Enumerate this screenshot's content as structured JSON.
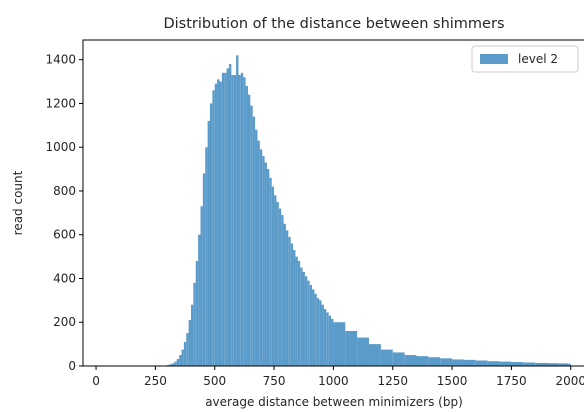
{
  "chart_data": {
    "type": "bar",
    "histogram": true,
    "title": "Distribution of the distance between shimmers",
    "xlabel": "average distance between minimizers (bp)",
    "ylabel": "read count",
    "xlim": [
      -55,
      2060
    ],
    "ylim": [
      0,
      1490
    ],
    "xticks": [
      0,
      250,
      500,
      750,
      1000,
      1250,
      1500,
      1750,
      2000
    ],
    "yticks": [
      0,
      200,
      400,
      600,
      800,
      1000,
      1200,
      1400
    ],
    "legend": {
      "placement": "top-right",
      "entries": [
        "level 2"
      ]
    },
    "grid": false,
    "series": [
      {
        "name": "level 2",
        "color": "#5a9bc9",
        "bin_width": 10,
        "x": [
          300,
          310,
          320,
          330,
          340,
          350,
          360,
          370,
          380,
          390,
          400,
          410,
          420,
          430,
          440,
          450,
          460,
          470,
          480,
          490,
          500,
          510,
          520,
          530,
          540,
          550,
          560,
          570,
          580,
          590,
          600,
          610,
          620,
          630,
          640,
          650,
          660,
          670,
          680,
          690,
          700,
          710,
          720,
          730,
          740,
          750,
          760,
          770,
          780,
          790,
          800,
          810,
          820,
          830,
          840,
          850,
          860,
          870,
          880,
          890,
          900,
          910,
          920,
          930,
          940,
          950,
          960,
          970,
          980,
          990,
          1000,
          1050,
          1100,
          1150,
          1200,
          1250,
          1300,
          1350,
          1400,
          1450,
          1500,
          1550,
          1600,
          1650,
          1700,
          1750,
          1800,
          1850,
          1900,
          1950,
          1990
        ],
        "values": [
          5,
          8,
          12,
          20,
          32,
          50,
          75,
          110,
          150,
          210,
          280,
          380,
          480,
          600,
          730,
          880,
          1000,
          1120,
          1200,
          1260,
          1290,
          1310,
          1300,
          1340,
          1340,
          1360,
          1380,
          1330,
          1330,
          1420,
          1330,
          1340,
          1320,
          1280,
          1240,
          1190,
          1140,
          1080,
          1030,
          990,
          960,
          930,
          900,
          860,
          820,
          780,
          750,
          720,
          690,
          650,
          620,
          590,
          560,
          530,
          500,
          480,
          450,
          430,
          410,
          390,
          370,
          350,
          330,
          310,
          300,
          280,
          260,
          245,
          230,
          215,
          200,
          160,
          130,
          100,
          75,
          62,
          50,
          45,
          40,
          35,
          30,
          28,
          25,
          22,
          20,
          18,
          16,
          14,
          13,
          12,
          10
        ]
      }
    ]
  }
}
